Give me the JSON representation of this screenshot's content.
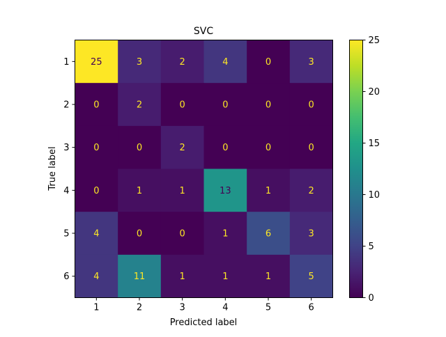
{
  "chart_data": {
    "type": "heatmap",
    "title": "SVC",
    "xlabel": "Predicted label",
    "ylabel": "True label",
    "x_categories": [
      "1",
      "2",
      "3",
      "4",
      "5",
      "6"
    ],
    "y_categories": [
      "1",
      "2",
      "3",
      "4",
      "5",
      "6"
    ],
    "values": [
      [
        25,
        3,
        2,
        4,
        0,
        3
      ],
      [
        0,
        2,
        0,
        0,
        0,
        0
      ],
      [
        0,
        0,
        2,
        0,
        0,
        0
      ],
      [
        0,
        1,
        1,
        13,
        1,
        2
      ],
      [
        4,
        0,
        0,
        1,
        6,
        3
      ],
      [
        4,
        11,
        1,
        1,
        1,
        5
      ]
    ],
    "colormap": "viridis",
    "color_range": [
      0,
      25
    ],
    "colorbar_ticks": [
      0,
      5,
      10,
      15,
      20,
      25
    ],
    "annotation_colors": {
      "on_dark": "#fde725",
      "on_light": "#440154"
    }
  }
}
